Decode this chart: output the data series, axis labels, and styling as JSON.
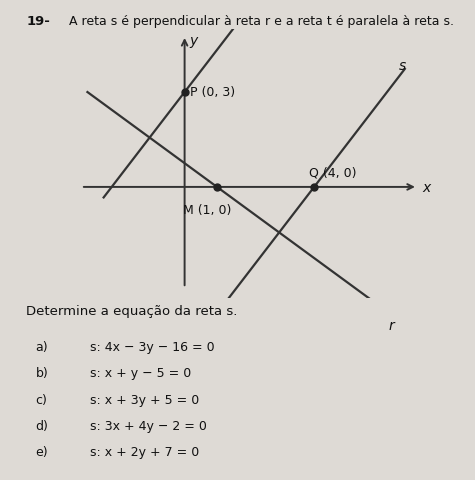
{
  "title_number": "19-",
  "title_text": "A reta s é perpendicular à reta r e a reta t é paralela à reta s.",
  "background_color": "#dedad5",
  "points": {
    "P": [
      0,
      3
    ],
    "M": [
      1,
      0
    ],
    "Q": [
      4,
      0
    ]
  },
  "question_text": "Determine a equação da reta s.",
  "options": [
    {
      "label": "a)",
      "text": "s: 4x − 3y − 16 = 0"
    },
    {
      "label": "b)",
      "text": "s: x + y − 5 = 0"
    },
    {
      "label": "c)",
      "text": "s: x + 3y + 5 = 0"
    },
    {
      "label": "d)",
      "text": "s: 3x + 4y − 2 = 0"
    },
    {
      "label": "e)",
      "text": "s: x + 2y + 7 = 0"
    }
  ],
  "axes_color": "#333333",
  "line_color": "#333333",
  "point_color": "#222222",
  "text_color": "#111111",
  "graph_xlim": [
    -3.5,
    7.5
  ],
  "graph_ylim": [
    -3.5,
    5.0
  ],
  "slope_r": -0.75,
  "slope_s": 1.333
}
